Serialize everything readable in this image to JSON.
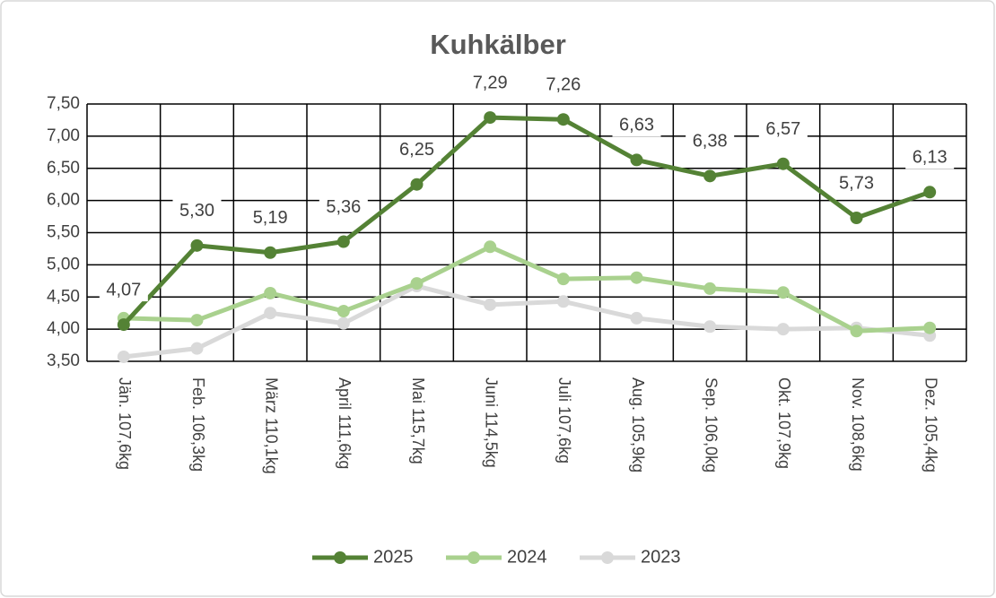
{
  "chart_data": {
    "type": "line",
    "title": "Kuhkälber",
    "categories": [
      "Jän.  107,6kg",
      "Feb.  106,3kg",
      "März 110,1kg",
      "April  111,6kg",
      "Mai  115,7kg",
      "Juni  114,5kg",
      "Juli  107,6kg",
      "Aug.  105,9kg",
      "Sep.  106,0kg",
      "Okt.  107,9kg",
      "Nov.  108,6kg",
      "Dez.  105,4kg"
    ],
    "series": [
      {
        "name": "2025",
        "color": "#548235",
        "values": [
          4.07,
          5.3,
          5.19,
          5.36,
          6.25,
          7.29,
          7.26,
          6.63,
          6.38,
          6.57,
          5.73,
          6.13
        ],
        "value_labels": [
          "4,07",
          "5,30",
          "5,19",
          "5,36",
          "6,25",
          "7,29",
          "7,26",
          "6,63",
          "6,38",
          "6,57",
          "5,73",
          "6,13"
        ]
      },
      {
        "name": "2024",
        "color": "#a9d18e",
        "values": [
          4.17,
          4.14,
          4.56,
          4.28,
          4.71,
          5.28,
          4.78,
          4.8,
          4.63,
          4.57,
          3.97,
          4.02
        ]
      },
      {
        "name": "2023",
        "color": "#d9d9d9",
        "values": [
          3.57,
          3.7,
          4.25,
          4.09,
          4.67,
          4.38,
          4.43,
          4.17,
          4.04,
          4.0,
          4.02,
          3.9
        ]
      }
    ],
    "ylim": [
      3.5,
      7.5
    ],
    "yticks": [
      {
        "value": 3.5,
        "label": "3,50"
      },
      {
        "value": 4.0,
        "label": "4,00"
      },
      {
        "value": 4.5,
        "label": "4,50"
      },
      {
        "value": 5.0,
        "label": "5,00"
      },
      {
        "value": 5.5,
        "label": "5,50"
      },
      {
        "value": 6.0,
        "label": "6,00"
      },
      {
        "value": 6.5,
        "label": "6,50"
      },
      {
        "value": 7.0,
        "label": "7,00"
      },
      {
        "value": 7.5,
        "label": "7,50"
      }
    ],
    "grid": true,
    "legend": "bottom"
  }
}
